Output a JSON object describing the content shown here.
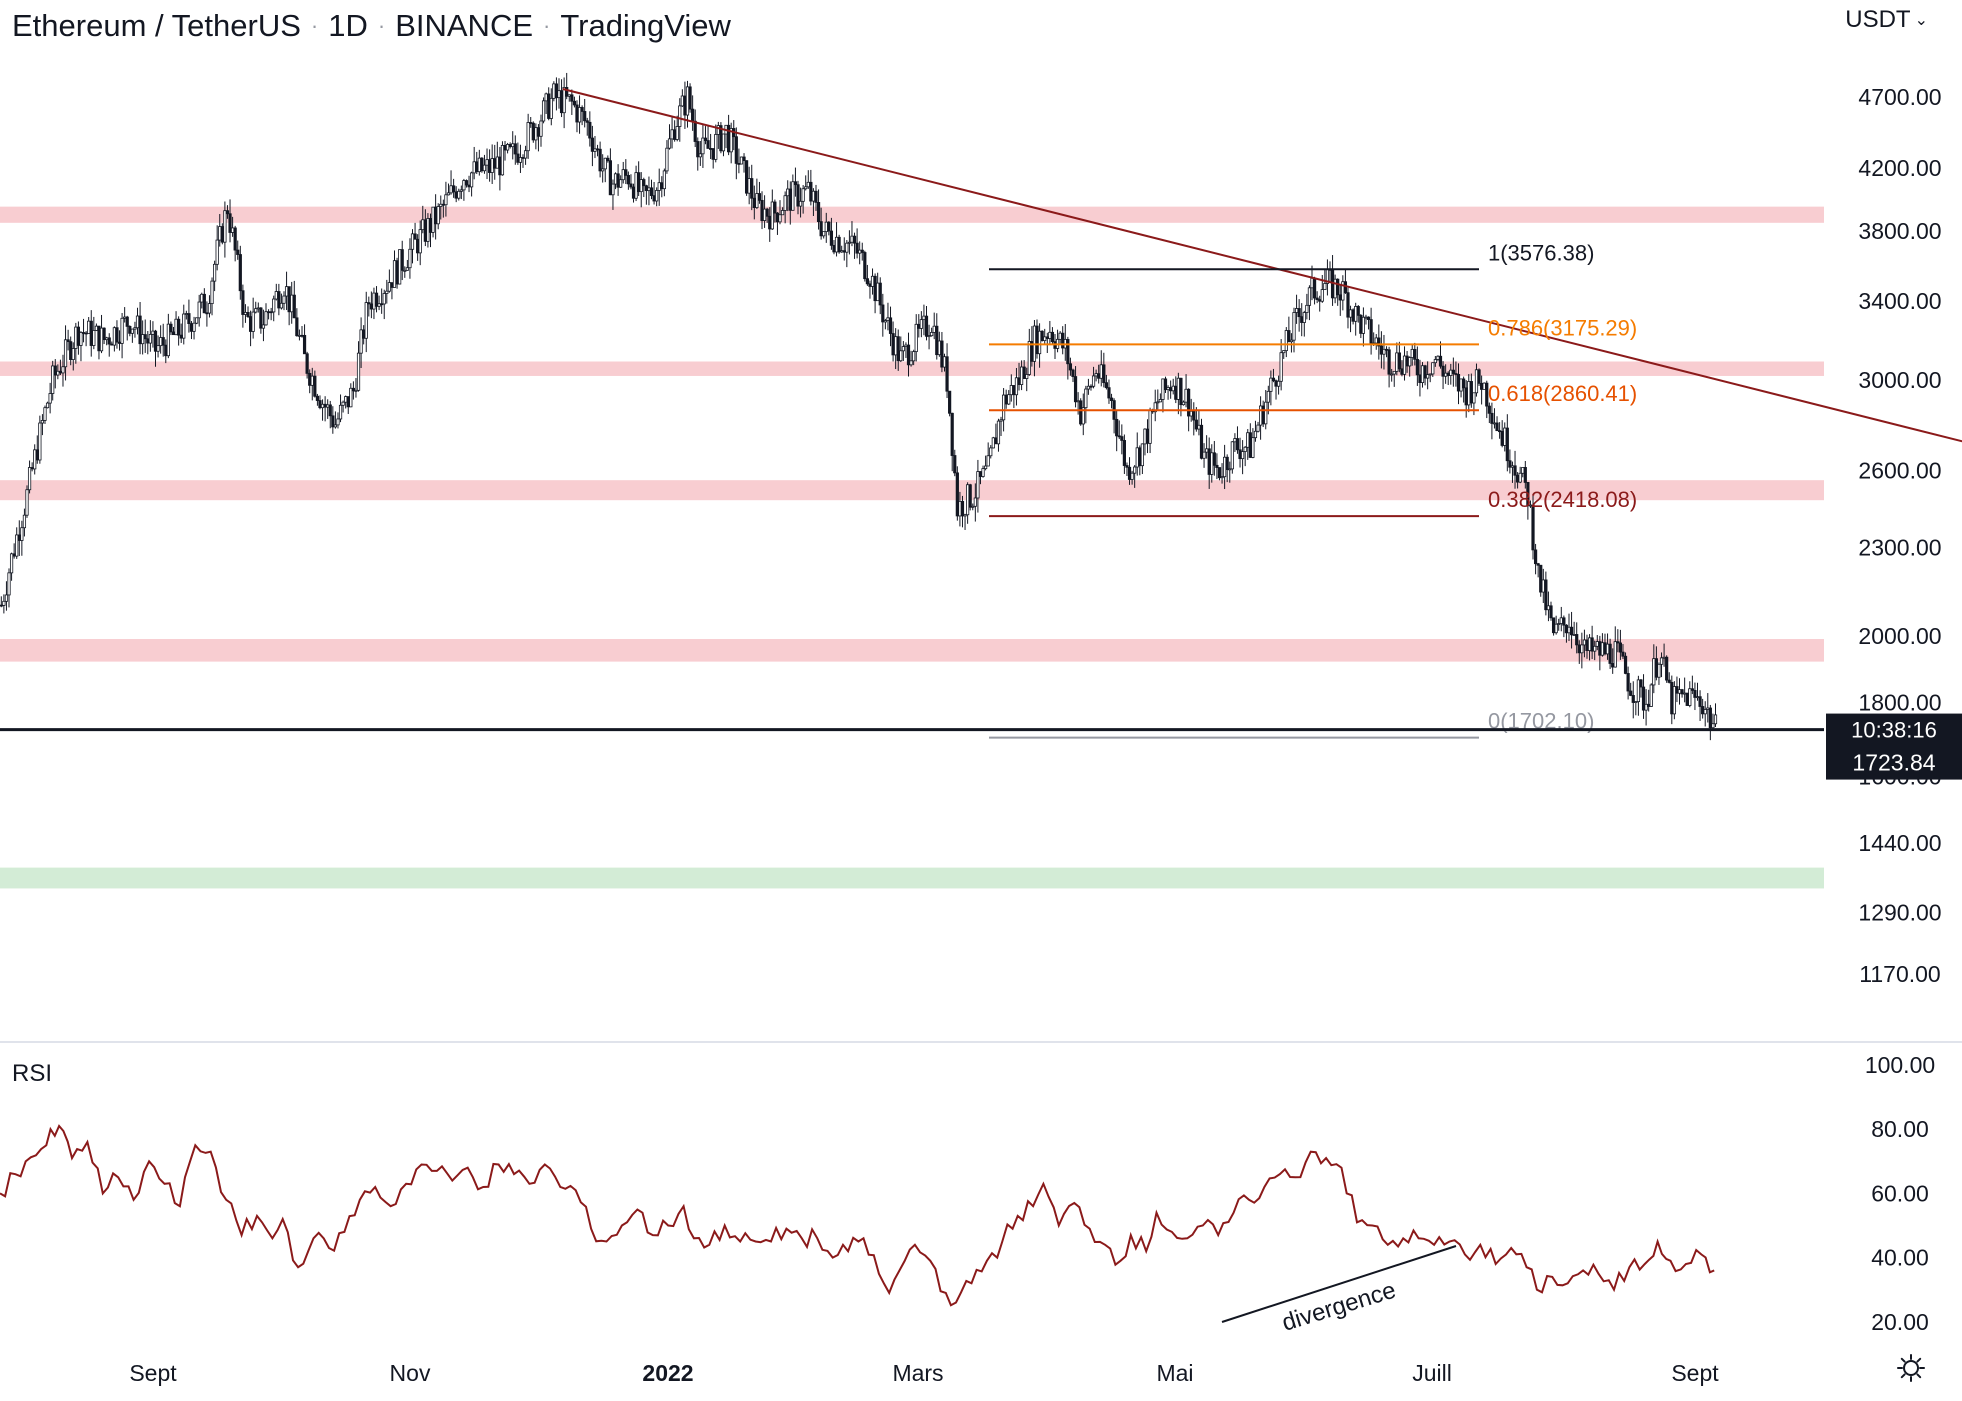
{
  "header": {
    "symbol": "Ethereum / TetherUS",
    "interval": "1D",
    "exchange": "BINANCE",
    "source": "TradingView",
    "currency": "USDT"
  },
  "price_label": {
    "countdown": "10:38:16",
    "price": "1723.84"
  },
  "rsi_label": "RSI",
  "annotation": "divergence",
  "colors": {
    "up": "#ffffff",
    "down": "#131722",
    "trendline": "#8b1a1a",
    "zone_red": "#f8cdd1",
    "zone_green": "#d3ecd6",
    "rsi": "#8b1a1a",
    "fib_1": "#131722",
    "fib_0786": "#f57c00",
    "fib_0618": "#e65100",
    "fib_0382": "#8b1a1a",
    "fib_0": "#9598a1"
  },
  "chart_data": [
    {
      "type": "candlestick",
      "title": "Ethereum / TetherUS · 1D · BINANCE",
      "x_axis": {
        "ticks": [
          "Sept",
          "Nov",
          "2022",
          "Mars",
          "Mai",
          "Juill",
          "Sept"
        ]
      },
      "y_axis": {
        "scale": "log",
        "ticks": [
          1170,
          1290,
          1440,
          1600,
          1800,
          2000,
          2300,
          2600,
          3000,
          3400,
          3800,
          4200,
          4700
        ]
      },
      "price_path": [
        [
          0,
          2100
        ],
        [
          10,
          2500
        ],
        [
          20,
          3000
        ],
        [
          30,
          3250
        ],
        [
          40,
          3200
        ],
        [
          50,
          3300
        ],
        [
          60,
          3150
        ],
        [
          70,
          3250
        ],
        [
          80,
          3400
        ],
        [
          88,
          3950
        ],
        [
          95,
          3300
        ],
        [
          102,
          3300
        ],
        [
          110,
          3500
        ],
        [
          118,
          3100
        ],
        [
          125,
          2900
        ],
        [
          130,
          2800
        ],
        [
          137,
          2950
        ],
        [
          143,
          3400
        ],
        [
          150,
          3500
        ],
        [
          160,
          3700
        ],
        [
          170,
          3900
        ],
        [
          180,
          4150
        ],
        [
          190,
          4200
        ],
        [
          200,
          4300
        ],
        [
          208,
          4500
        ],
        [
          215,
          4700
        ],
        [
          222,
          4650
        ],
        [
          228,
          4500
        ],
        [
          234,
          4200
        ],
        [
          238,
          4100
        ],
        [
          244,
          4150
        ],
        [
          250,
          4000
        ],
        [
          256,
          4100
        ],
        [
          262,
          4500
        ],
        [
          267,
          4700
        ],
        [
          272,
          4300
        ],
        [
          277,
          4350
        ],
        [
          282,
          4450
        ],
        [
          288,
          4200
        ],
        [
          294,
          3950
        ],
        [
          300,
          3900
        ],
        [
          306,
          4000
        ],
        [
          314,
          4050
        ],
        [
          320,
          3800
        ],
        [
          326,
          3750
        ],
        [
          332,
          3700
        ],
        [
          338,
          3550
        ],
        [
          344,
          3300
        ],
        [
          350,
          3100
        ],
        [
          356,
          3200
        ],
        [
          362,
          3300
        ],
        [
          368,
          3000
        ],
        [
          372,
          2450
        ],
        [
          378,
          2500
        ],
        [
          384,
          2600
        ],
        [
          390,
          2900
        ],
        [
          396,
          3000
        ],
        [
          402,
          3200
        ],
        [
          408,
          3250
        ],
        [
          414,
          3150
        ],
        [
          420,
          2850
        ],
        [
          426,
          3050
        ],
        [
          432,
          2900
        ],
        [
          438,
          2600
        ],
        [
          444,
          2700
        ],
        [
          450,
          2900
        ],
        [
          456,
          3000
        ],
        [
          462,
          2900
        ],
        [
          468,
          2650
        ],
        [
          474,
          2600
        ],
        [
          480,
          2700
        ],
        [
          486,
          2700
        ],
        [
          492,
          2900
        ],
        [
          498,
          3100
        ],
        [
          504,
          3300
        ],
        [
          510,
          3450
        ],
        [
          516,
          3500
        ],
        [
          522,
          3450
        ],
        [
          528,
          3300
        ],
        [
          534,
          3200
        ],
        [
          540,
          3100
        ],
        [
          546,
          3100
        ],
        [
          552,
          3050
        ],
        [
          558,
          3100
        ],
        [
          564,
          3000
        ],
        [
          570,
          2950
        ],
        [
          576,
          3000
        ],
        [
          582,
          2800
        ],
        [
          588,
          2650
        ],
        [
          594,
          2500
        ],
        [
          598,
          2200
        ],
        [
          604,
          2000
        ],
        [
          610,
          2050
        ],
        [
          616,
          1950
        ],
        [
          622,
          1950
        ],
        [
          628,
          1950
        ],
        [
          634,
          1850
        ],
        [
          640,
          1800
        ],
        [
          645,
          1950
        ],
        [
          650,
          1800
        ],
        [
          656,
          1820
        ],
        [
          662,
          1800
        ],
        [
          667,
          1723.84
        ]
      ],
      "horizontal_zones": [
        {
          "low": 3850,
          "high": 3950,
          "color": "red"
        },
        {
          "low": 3020,
          "high": 3090,
          "color": "red"
        },
        {
          "low": 2480,
          "high": 2560,
          "color": "red"
        },
        {
          "low": 1920,
          "high": 1990,
          "color": "red"
        },
        {
          "low": 1340,
          "high": 1385,
          "color": "green"
        }
      ],
      "trendline": [
        [
          219,
          4760
        ],
        [
          907,
          2350
        ]
      ],
      "fibonacci": [
        {
          "ratio": "1",
          "price": 3576.38,
          "label": "1(3576.38)"
        },
        {
          "ratio": "0.786",
          "price": 3175.29,
          "label": "0.786(3175.29)"
        },
        {
          "ratio": "0.618",
          "price": 2860.41,
          "label": "0.618(2860.41)"
        },
        {
          "ratio": "0.382",
          "price": 2418.08,
          "label": "0.382(2418.08)"
        },
        {
          "ratio": "0",
          "price": 1702.1,
          "label": "0(1702.10)"
        }
      ],
      "last_price": 1723.84
    },
    {
      "type": "line",
      "title": "RSI",
      "y_axis": {
        "ticks": [
          20,
          40,
          60,
          80,
          100
        ]
      },
      "series": [
        {
          "name": "RSI",
          "values": [
            [
              0,
              60
            ],
            [
              10,
              70
            ],
            [
              18,
              75
            ],
            [
              23,
              81
            ],
            [
              28,
              71
            ],
            [
              34,
              76
            ],
            [
              40,
              60
            ],
            [
              46,
              65
            ],
            [
              52,
              58
            ],
            [
              58,
              70
            ],
            [
              64,
              63
            ],
            [
              70,
              56
            ],
            [
              76,
              75
            ],
            [
              82,
              73
            ],
            [
              88,
              58
            ],
            [
              94,
              47
            ],
            [
              100,
              53
            ],
            [
              106,
              46
            ],
            [
              110,
              52
            ],
            [
              116,
              37
            ],
            [
              122,
              46
            ],
            [
              128,
              43
            ],
            [
              134,
              48
            ],
            [
              140,
              58
            ],
            [
              146,
              62
            ],
            [
              152,
              56
            ],
            [
              158,
              63
            ],
            [
              164,
              69
            ],
            [
              170,
              67
            ],
            [
              176,
              64
            ],
            [
              182,
              68
            ],
            [
              188,
              62
            ],
            [
              194,
              69
            ],
            [
              200,
              66
            ],
            [
              206,
              63
            ],
            [
              212,
              69
            ],
            [
              218,
              62
            ],
            [
              224,
              61
            ],
            [
              230,
              49
            ],
            [
              236,
              45
            ],
            [
              242,
              50
            ],
            [
              248,
              55
            ],
            [
              254,
              47
            ],
            [
              260,
              50
            ],
            [
              266,
              56
            ],
            [
              270,
              46
            ],
            [
              276,
              44
            ],
            [
              282,
              50
            ],
            [
              288,
              45
            ],
            [
              294,
              45
            ],
            [
              300,
              45
            ],
            [
              306,
              49
            ],
            [
              312,
              46
            ],
            [
              318,
              46
            ],
            [
              324,
              40
            ],
            [
              330,
              42
            ],
            [
              336,
              46
            ],
            [
              342,
              35
            ],
            [
              346,
              29
            ],
            [
              350,
              36
            ],
            [
              356,
              44
            ],
            [
              362,
              39
            ],
            [
              368,
              29
            ],
            [
              372,
              26
            ],
            [
              378,
              32
            ],
            [
              384,
              39
            ],
            [
              390,
              45
            ],
            [
              396,
              53
            ],
            [
              402,
              56
            ],
            [
              406,
              63
            ],
            [
              412,
              50
            ],
            [
              418,
              57
            ],
            [
              424,
              49
            ],
            [
              430,
              44
            ],
            [
              436,
              39
            ],
            [
              440,
              47
            ],
            [
              446,
              42
            ],
            [
              450,
              54
            ],
            [
              456,
              48
            ],
            [
              462,
              46
            ],
            [
              468,
              50
            ],
            [
              474,
              47
            ],
            [
              480,
              54
            ],
            [
              486,
              58
            ],
            [
              492,
              62
            ],
            [
              498,
              66
            ],
            [
              504,
              65
            ],
            [
              510,
              73
            ],
            [
              516,
              71
            ],
            [
              522,
              68
            ],
            [
              528,
              51
            ],
            [
              534,
              50
            ],
            [
              540,
              44
            ],
            [
              546,
              46
            ],
            [
              552,
              46
            ],
            [
              558,
              44
            ],
            [
              564,
              45
            ],
            [
              570,
              41
            ],
            [
              576,
              44
            ],
            [
              582,
              38
            ],
            [
              588,
              43
            ],
            [
              594,
              37
            ],
            [
              598,
              30
            ],
            [
              604,
              34
            ],
            [
              610,
              32
            ],
            [
              616,
              36
            ],
            [
              622,
              35
            ],
            [
              628,
              30
            ],
            [
              634,
              37
            ],
            [
              640,
              38
            ],
            [
              645,
              45
            ],
            [
              650,
              39
            ],
            [
              656,
              38
            ],
            [
              662,
              41
            ],
            [
              667,
              36
            ]
          ]
        }
      ],
      "divergence_line": [
        [
          491,
          24
        ],
        [
          640,
          45
        ]
      ]
    }
  ]
}
